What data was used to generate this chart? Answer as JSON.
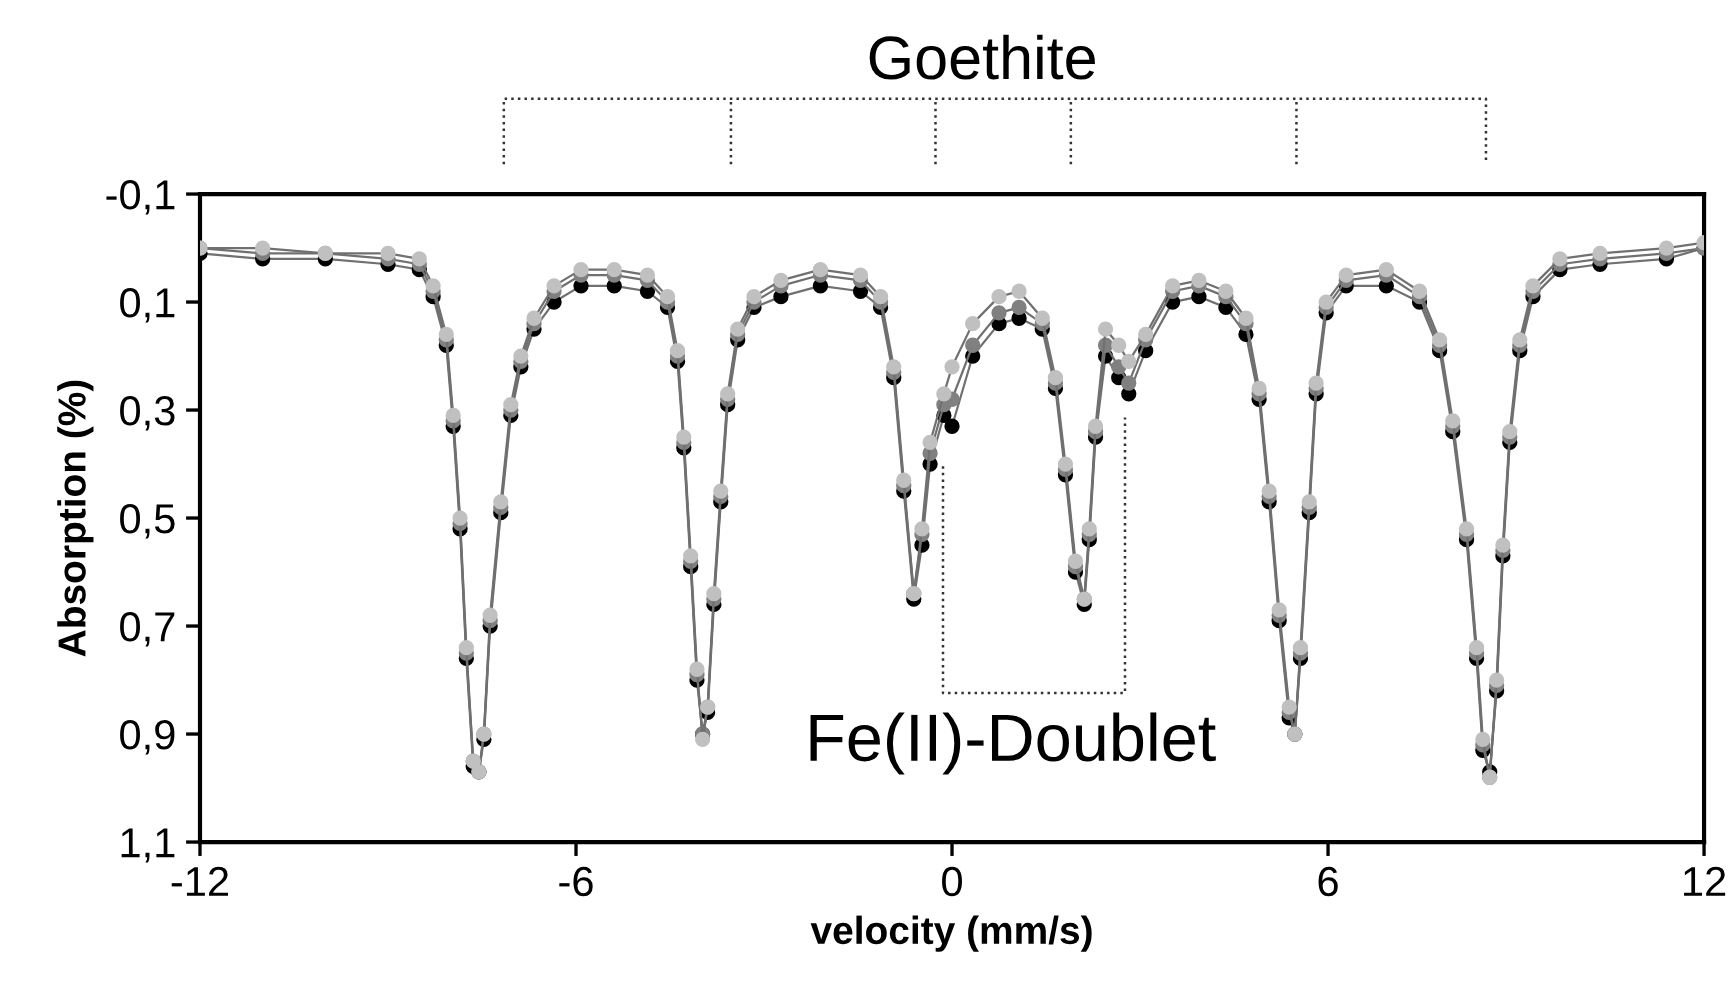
{
  "chart_data": {
    "type": "line",
    "xlabel": "velocity (mm/s)",
    "ylabel": "Absorption (%)",
    "x": [
      -12,
      -11,
      -10,
      -9,
      -8.5,
      -8.28,
      -8.07,
      -7.96,
      -7.85,
      -7.75,
      -7.64,
      -7.55,
      -7.47,
      -7.37,
      -7.2,
      -7.04,
      -6.88,
      -6.67,
      -6.35,
      -5.92,
      -5.39,
      -4.86,
      -4.54,
      -4.38,
      -4.28,
      -4.17,
      -4.07,
      -3.98,
      -3.9,
      -3.8,
      -3.69,
      -3.58,
      -3.42,
      -3.16,
      -2.73,
      -2.1,
      -1.46,
      -1.14,
      -0.93,
      -0.77,
      -0.61,
      -0.48,
      -0.35,
      -0.13,
      0.0,
      0.33,
      0.75,
      1.07,
      1.44,
      1.65,
      1.81,
      1.97,
      2.11,
      2.19,
      2.29,
      2.45,
      2.66,
      2.82,
      3.09,
      3.52,
      3.94,
      4.37,
      4.69,
      4.9,
      5.06,
      5.22,
      5.38,
      5.47,
      5.56,
      5.7,
      5.81,
      5.97,
      6.29,
      6.93,
      7.46,
      7.78,
      7.99,
      8.21,
      8.37,
      8.47,
      8.58,
      8.69,
      8.79,
      8.9,
      9.06,
      9.27,
      9.7,
      10.34,
      11.4,
      12.0
    ],
    "series": [
      {
        "color": "#000000",
        "values": [
          0.01,
          0.02,
          0.02,
          0.03,
          0.04,
          0.09,
          0.18,
          0.33,
          0.52,
          0.76,
          0.96,
          0.97,
          0.91,
          0.7,
          0.49,
          0.31,
          0.22,
          0.15,
          0.1,
          0.07,
          0.07,
          0.08,
          0.11,
          0.21,
          0.37,
          0.59,
          0.8,
          0.9,
          0.86,
          0.66,
          0.47,
          0.29,
          0.17,
          0.11,
          0.09,
          0.07,
          0.08,
          0.11,
          0.24,
          0.45,
          0.65,
          0.55,
          0.4,
          0.31,
          0.33,
          0.2,
          0.14,
          0.13,
          0.15,
          0.26,
          0.42,
          0.6,
          0.66,
          0.54,
          0.35,
          0.2,
          0.24,
          0.27,
          0.19,
          0.1,
          0.09,
          0.11,
          0.16,
          0.28,
          0.47,
          0.69,
          0.87,
          0.9,
          0.76,
          0.49,
          0.27,
          0.12,
          0.07,
          0.07,
          0.1,
          0.19,
          0.34,
          0.54,
          0.76,
          0.93,
          0.97,
          0.82,
          0.57,
          0.36,
          0.19,
          0.09,
          0.04,
          0.03,
          0.02,
          0.0
        ]
      },
      {
        "color": "#808080",
        "values": [
          0.0,
          0.01,
          0.01,
          0.02,
          0.03,
          0.08,
          0.17,
          0.32,
          0.51,
          0.75,
          0.95,
          0.97,
          0.9,
          0.69,
          0.48,
          0.3,
          0.21,
          0.14,
          0.08,
          0.05,
          0.05,
          0.06,
          0.1,
          0.2,
          0.36,
          0.58,
          0.79,
          0.9,
          0.85,
          0.65,
          0.46,
          0.28,
          0.16,
          0.1,
          0.07,
          0.05,
          0.06,
          0.1,
          0.23,
          0.44,
          0.64,
          0.53,
          0.38,
          0.29,
          0.28,
          0.18,
          0.12,
          0.11,
          0.14,
          0.25,
          0.41,
          0.59,
          0.65,
          0.53,
          0.34,
          0.18,
          0.22,
          0.25,
          0.17,
          0.08,
          0.07,
          0.09,
          0.14,
          0.27,
          0.46,
          0.68,
          0.86,
          0.9,
          0.75,
          0.48,
          0.26,
          0.11,
          0.06,
          0.05,
          0.09,
          0.18,
          0.33,
          0.53,
          0.75,
          0.92,
          0.98,
          0.81,
          0.56,
          0.35,
          0.18,
          0.08,
          0.03,
          0.02,
          0.01,
          0.0
        ]
      },
      {
        "color": "#c0c0c0",
        "values": [
          0.0,
          0.0,
          0.01,
          0.01,
          0.02,
          0.07,
          0.16,
          0.31,
          0.5,
          0.74,
          0.95,
          0.97,
          0.9,
          0.68,
          0.47,
          0.29,
          0.2,
          0.13,
          0.07,
          0.04,
          0.04,
          0.05,
          0.09,
          0.19,
          0.35,
          0.57,
          0.78,
          0.91,
          0.85,
          0.64,
          0.45,
          0.27,
          0.15,
          0.09,
          0.06,
          0.04,
          0.05,
          0.09,
          0.22,
          0.43,
          0.64,
          0.52,
          0.36,
          0.27,
          0.22,
          0.14,
          0.09,
          0.08,
          0.13,
          0.24,
          0.4,
          0.58,
          0.65,
          0.52,
          0.33,
          0.15,
          0.18,
          0.21,
          0.16,
          0.07,
          0.06,
          0.08,
          0.13,
          0.26,
          0.45,
          0.67,
          0.85,
          0.9,
          0.74,
          0.47,
          0.25,
          0.1,
          0.05,
          0.04,
          0.08,
          0.17,
          0.32,
          0.52,
          0.74,
          0.91,
          0.98,
          0.8,
          0.55,
          0.34,
          0.17,
          0.07,
          0.02,
          0.01,
          0.0,
          -0.01
        ]
      }
    ],
    "marker": "circle",
    "line_style": "solid",
    "grid": false,
    "legend": false,
    "xlim": [
      -12,
      12
    ],
    "xticks": [
      -12,
      -6,
      0,
      6,
      12
    ],
    "ylim": [
      1.1,
      -0.1
    ],
    "yticks": [
      {
        "value": -0.1,
        "label": "-0,1"
      },
      {
        "value": 0.1,
        "label": "0,1"
      },
      {
        "value": 0.3,
        "label": "0,3"
      },
      {
        "value": 0.5,
        "label": "0,5"
      },
      {
        "value": 0.7,
        "label": "0,7"
      },
      {
        "value": 0.9,
        "label": "0,9"
      },
      {
        "value": 1.1,
        "label": "1,1"
      }
    ],
    "annotations": [
      "Goethite",
      "Fe(II)-Doublet"
    ]
  }
}
